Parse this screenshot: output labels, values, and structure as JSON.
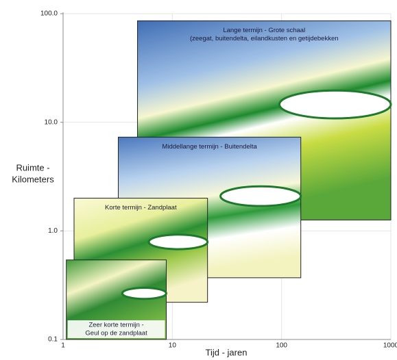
{
  "chart_data": {
    "type": "scale-panels",
    "x_label": "Tijd - jaren",
    "y_label": [
      "Ruimte -",
      "Kilometers"
    ],
    "x_log": true,
    "y_log": true,
    "grid": true,
    "xlim": [
      1,
      1000
    ],
    "ylim": [
      0.1,
      100
    ],
    "xticks": [
      1,
      10,
      100,
      1000
    ],
    "yticks": [
      {
        "value": 0.1,
        "label": "0.1"
      },
      {
        "value": 1,
        "label": "1.0"
      },
      {
        "value": 10,
        "label": "10.0"
      },
      {
        "value": 100,
        "label": "100.0"
      }
    ],
    "panels": [
      {
        "label": [
          "Lange termijn - Grote schaal",
          "(zeegat, buitendelta, eilandkusten en getijdebekken"
        ],
        "x": [
          4.8,
          1000
        ],
        "y": [
          1.26,
          86
        ]
      },
      {
        "label": [
          "Middellange termijn - Buitendelta"
        ],
        "x": [
          3.2,
          150
        ],
        "y": [
          0.37,
          7.3
        ]
      },
      {
        "label": [
          "Korte termijn - Zandplaat"
        ],
        "x": [
          1.26,
          21
        ],
        "y": [
          0.22,
          2.0
        ]
      },
      {
        "label": [
          "Zeer korte termijn -",
          "Geul op de zandplaat"
        ],
        "x": [
          1.07,
          8.8
        ],
        "y": [
          0.1,
          0.54
        ]
      }
    ]
  }
}
